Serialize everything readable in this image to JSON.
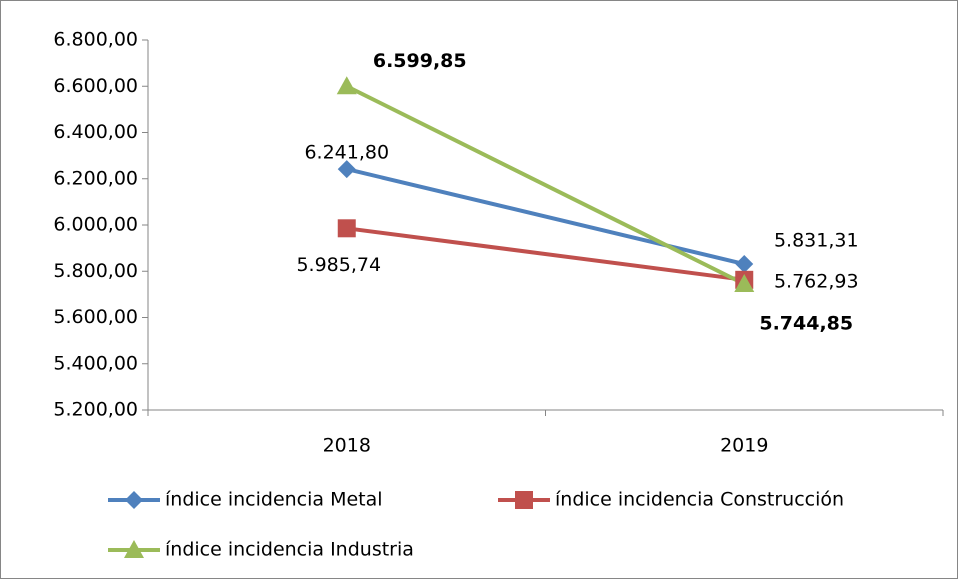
{
  "chart_data": {
    "type": "line",
    "categories": [
      "2018",
      "2019"
    ],
    "series": [
      {
        "name": "índice incidencia Metal",
        "color": "#4f81bd",
        "marker": "diamond",
        "label_color": "#4bacc6",
        "label_bold": false,
        "values": [
          6241.8,
          5831.31
        ],
        "value_labels": [
          "6.241,80",
          "5.831,31"
        ]
      },
      {
        "name": "índice incidencia Construcción",
        "color": "#c0504d",
        "marker": "square",
        "label_color": "#c0504d",
        "label_bold": false,
        "values": [
          5985.74,
          5762.93
        ],
        "value_labels": [
          "5.985,74",
          "5.762,93"
        ]
      },
      {
        "name": "índice incidencia Industria",
        "color": "#9bbb59",
        "marker": "triangle",
        "label_color": "#595959",
        "label_bold": true,
        "values": [
          6599.85,
          5744.85
        ],
        "value_labels": [
          "6.599,85",
          "5.744,85"
        ]
      }
    ],
    "ylim": [
      5200,
      6800
    ],
    "yticks": [
      {
        "value": 5200,
        "label": "5.200,00"
      },
      {
        "value": 5400,
        "label": "5.400,00"
      },
      {
        "value": 5600,
        "label": "5.600,00"
      },
      {
        "value": 5800,
        "label": "5.800,00"
      },
      {
        "value": 6000,
        "label": "6.000,00"
      },
      {
        "value": 6200,
        "label": "6.200,00"
      },
      {
        "value": 6400,
        "label": "6.400,00"
      },
      {
        "value": 6600,
        "label": "6.600,00"
      },
      {
        "value": 6800,
        "label": "6.800,00"
      }
    ],
    "grid": false,
    "legend": "bottom"
  }
}
